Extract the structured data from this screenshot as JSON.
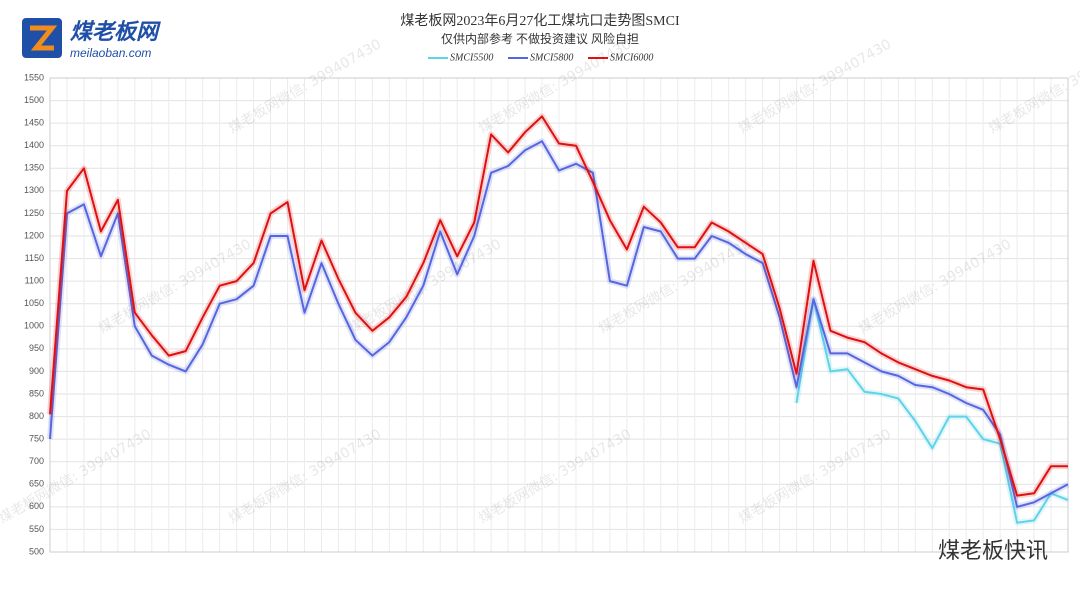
{
  "logo": {
    "name": "煤老板网",
    "site": "meilaoban.com"
  },
  "watermark": "煤老板网微信: 399407430",
  "badge": "煤老板快讯",
  "chart_data": {
    "type": "line",
    "title": "煤老板网2023年6月27化工煤坑口走势图SMCI",
    "subtitle": "仅供内部参考 不做投资建议 风险自担",
    "categories": [
      null,
      null,
      null,
      null,
      null,
      null,
      null,
      null,
      null,
      null,
      null,
      null,
      null,
      null,
      null,
      null,
      null,
      null,
      null,
      null,
      null,
      null,
      null,
      null,
      null,
      null,
      null,
      null,
      null,
      null,
      null,
      null,
      null,
      null,
      null,
      null,
      null,
      null,
      null,
      null,
      null,
      null,
      null,
      null,
      null,
      null,
      null,
      null,
      null,
      null,
      null,
      null,
      null,
      null,
      null,
      null,
      null,
      null,
      null,
      null,
      null
    ],
    "series": [
      {
        "name": "SMCI5500",
        "color": "#5fd3e8",
        "values": [
          null,
          null,
          null,
          null,
          null,
          null,
          null,
          null,
          null,
          null,
          null,
          null,
          null,
          null,
          null,
          null,
          null,
          null,
          null,
          null,
          null,
          null,
          null,
          null,
          null,
          null,
          null,
          null,
          null,
          null,
          null,
          null,
          null,
          null,
          null,
          null,
          null,
          null,
          null,
          null,
          null,
          null,
          null,
          null,
          830,
          1060,
          900,
          905,
          855,
          850,
          840,
          790,
          730,
          800,
          800,
          750,
          740,
          565,
          570,
          630,
          615
        ]
      },
      {
        "name": "SMCI5800",
        "color": "#5566e0",
        "values": [
          750,
          1250,
          1270,
          1155,
          1250,
          1000,
          935,
          915,
          900,
          960,
          1050,
          1060,
          1090,
          1200,
          1200,
          1030,
          1140,
          1050,
          970,
          935,
          965,
          1020,
          1090,
          1210,
          1115,
          1200,
          1340,
          1355,
          1390,
          1410,
          1345,
          1360,
          1340,
          1100,
          1090,
          1220,
          1210,
          1150,
          1150,
          1200,
          1185,
          1160,
          1140,
          1020,
          865,
          1060,
          940,
          940,
          920,
          900,
          890,
          870,
          865,
          850,
          830,
          815,
          760,
          600,
          610,
          630,
          650
        ]
      },
      {
        "name": "SMCI6000",
        "color": "#e01010",
        "values": [
          805,
          1300,
          1350,
          1210,
          1280,
          1030,
          980,
          935,
          945,
          1020,
          1090,
          1100,
          1140,
          1250,
          1275,
          1080,
          1190,
          1105,
          1030,
          990,
          1020,
          1065,
          1140,
          1235,
          1155,
          1230,
          1425,
          1385,
          1430,
          1465,
          1405,
          1400,
          1320,
          1235,
          1170,
          1265,
          1230,
          1175,
          1175,
          1230,
          1210,
          1185,
          1160,
          1040,
          895,
          1145,
          990,
          975,
          965,
          940,
          920,
          905,
          890,
          880,
          865,
          860,
          750,
          625,
          630,
          690,
          690
        ]
      }
    ],
    "ylim": [
      500,
      1550
    ],
    "yticks": [
      500,
      550,
      600,
      650,
      700,
      750,
      800,
      850,
      900,
      950,
      1000,
      1050,
      1100,
      1150,
      1200,
      1250,
      1300,
      1350,
      1400,
      1450,
      1500,
      1550
    ],
    "grid": true,
    "legend": "top"
  }
}
